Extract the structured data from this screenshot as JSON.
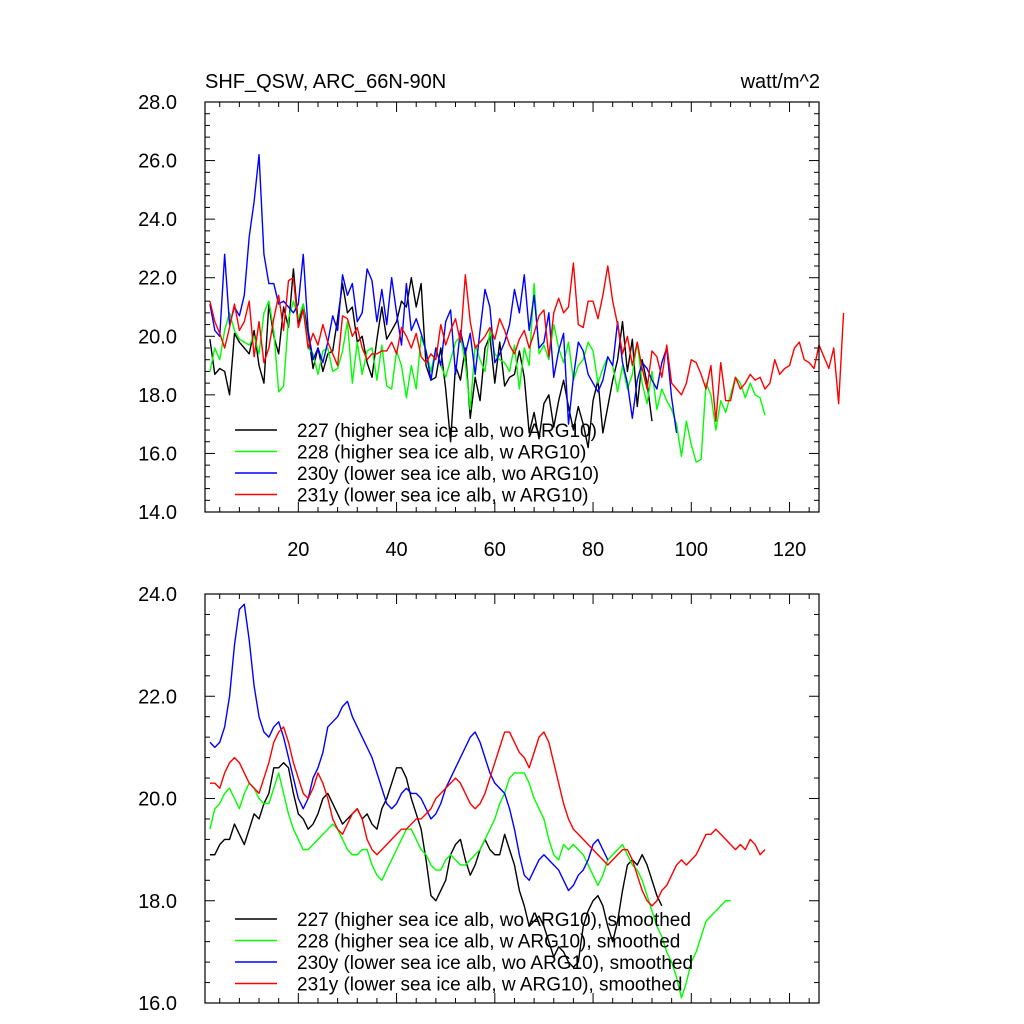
{
  "chart_data": [
    {
      "type": "line",
      "title": "SHF_QSW, ARC_66N-90N",
      "units": "watt/m^2",
      "xlim": [
        1,
        126
      ],
      "ylim": [
        14,
        28
      ],
      "x_ticks": [
        20,
        40,
        60,
        80,
        100,
        120
      ],
      "x_tick_labels": [
        "20",
        "40",
        "60",
        "80",
        "100",
        "120"
      ],
      "y_ticks": [
        14,
        16,
        18,
        20,
        22,
        24,
        26,
        28
      ],
      "y_tick_labels": [
        "14.0",
        "16.0",
        "18.0",
        "20.0",
        "22.0",
        "24.0",
        "26.0",
        "28.0"
      ],
      "grid": false,
      "legend_position": "bottom-left",
      "series": [
        {
          "name": "227 (higher sea ice alb, wo ARG10)",
          "color": "#000000",
          "x_start": 2,
          "values": [
            19.9,
            18.7,
            18.9,
            18.8,
            18.0,
            20.1,
            19.8,
            19.6,
            19.4,
            20.2,
            19.0,
            18.4,
            21.1,
            20.0,
            19.4,
            21.0,
            20.3,
            22.3,
            20.4,
            21.1,
            20.1,
            18.9,
            19.6,
            18.8,
            19.4,
            19.5,
            20.6,
            21.8,
            20.8,
            21.0,
            19.8,
            20.0,
            19.1,
            18.6,
            19.9,
            21.0,
            19.9,
            20.2,
            20.5,
            21.2,
            21.0,
            22.0,
            21.0,
            21.8,
            19.0,
            18.5,
            18.6,
            19.6,
            18.2,
            16.4,
            19.0,
            18.5,
            19.6,
            17.2,
            18.6,
            17.8,
            19.6,
            20.0,
            18.4,
            19.8,
            18.3,
            18.6,
            18.7,
            19.5,
            18.6,
            16.7,
            17.4,
            16.5,
            17.7,
            18.0,
            16.9,
            17.8,
            18.5,
            17.6,
            16.8,
            17.6,
            17.0,
            16.2,
            17.8,
            18.5,
            16.7,
            17.6,
            18.5,
            19.2,
            20.5,
            18.8,
            19.9,
            17.6,
            19.2,
            18.4,
            17.1
          ]
        },
        {
          "name": "228 (higher sea ice alb, w ARG10)",
          "color": "#00ff00",
          "x_start": 2,
          "values": [
            18.8,
            19.6,
            19.2,
            20.2,
            20.8,
            20.2,
            19.9,
            19.8,
            19.7,
            20.0,
            19.4,
            20.8,
            21.2,
            20.2,
            18.1,
            18.3,
            20.6,
            21.2,
            20.6,
            21.1,
            19.6,
            19.4,
            18.7,
            19.5,
            19.6,
            18.8,
            18.9,
            19.5,
            20.5,
            18.4,
            19.8,
            18.7,
            19.5,
            19.6,
            18.5,
            19.7,
            18.3,
            18.2,
            19.5,
            19.0,
            17.9,
            19.0,
            18.2,
            20.0,
            19.5,
            18.8,
            19.6,
            19.0,
            18.6,
            19.2,
            19.8,
            20.0,
            19.1,
            17.5,
            19.7,
            19.2,
            18.8,
            20.2,
            19.4,
            19.2,
            19.1,
            18.8,
            19.7,
            18.2,
            19.6,
            19.0,
            21.8,
            19.4,
            19.7,
            19.2,
            20.4,
            19.6,
            19.1,
            19.8,
            18.5,
            19.0,
            19.2,
            19.8,
            19.5,
            18.4,
            18.9,
            19.3,
            19.0,
            18.1,
            19.0,
            18.2,
            18.7,
            19.8,
            18.4,
            17.7,
            18.8,
            17.5,
            18.2,
            17.8,
            17.5,
            17.0,
            15.9,
            17.1,
            16.3,
            15.7,
            15.8,
            18.4,
            18.0,
            16.8,
            17.8,
            17.4,
            18.0,
            18.6,
            18.4,
            17.9,
            18.4,
            18.0,
            17.9,
            17.3
          ]
        },
        {
          "name": "230y (lower sea ice alb, wo ARG10)",
          "color": "#0000ff",
          "x_start": 2,
          "values": [
            21.1,
            20.2,
            20.0,
            22.8,
            20.4,
            21.0,
            20.7,
            21.4,
            23.4,
            24.6,
            26.2,
            22.8,
            21.8,
            21.8,
            21.1,
            21.2,
            21.0,
            20.8,
            21.1,
            22.8,
            20.2,
            19.2,
            19.6,
            19.1,
            19.8,
            20.7,
            20.2,
            22.1,
            21.4,
            21.8,
            20.5,
            20.8,
            22.3,
            21.9,
            20.5,
            21.6,
            20.4,
            22.0,
            20.8,
            19.7,
            21.8,
            20.2,
            20.6,
            20.1,
            19.5,
            18.5,
            19.6,
            19.0,
            20.5,
            20.9,
            18.7,
            20.2,
            19.4,
            20.1,
            18.7,
            20.2,
            21.6,
            21.0,
            19.1,
            19.4,
            19.8,
            20.4,
            21.6,
            20.8,
            22.1,
            20.2,
            21.4,
            19.6,
            19.8,
            20.8,
            18.6,
            19.5,
            20.1,
            17.0,
            18.6,
            19.8,
            19.5,
            18.7,
            18.4,
            18.1,
            18.5,
            19.3,
            19.0,
            20.5,
            19.1,
            18.4,
            17.2,
            18.5,
            19.1,
            18.9,
            18.5,
            18.2,
            19.1,
            19.6,
            17.9,
            16.7
          ]
        },
        {
          "name": "231y (lower sea ice alb, w ARG10)",
          "color": "#ff0000",
          "x_start": 2,
          "values": [
            21.2,
            20.5,
            20.1,
            19.6,
            20.3,
            21.1,
            20.2,
            20.5,
            21.2,
            19.3,
            20.5,
            19.1,
            19.6,
            20.6,
            21.4,
            20.2,
            21.9,
            22.0,
            20.3,
            20.9,
            19.6,
            20.1,
            19.7,
            20.4,
            19.8,
            19.4,
            19.0,
            20.7,
            20.6,
            20.0,
            20.3,
            19.6,
            19.2,
            19.4,
            19.4,
            19.5,
            19.5,
            19.8,
            19.4,
            20.3,
            20.0,
            19.6,
            20.1,
            19.3,
            19.1,
            19.4,
            19.2,
            20.4,
            19.7,
            20.2,
            20.6,
            19.8,
            22.1,
            20.5,
            19.6,
            19.8,
            20.0,
            20.3,
            19.9,
            20.6,
            20.2,
            19.7,
            19.4,
            19.9,
            20.2,
            19.6,
            20.1,
            20.7,
            20.9,
            19.3,
            20.8,
            21.3,
            20.8,
            21.0,
            22.5,
            20.4,
            20.3,
            21.2,
            21.2,
            20.6,
            21.4,
            22.4,
            21.2,
            20.4,
            19.4,
            20.0,
            19.0,
            19.8,
            18.9,
            18.2,
            19.5,
            19.3,
            18.6,
            19.7,
            18.4,
            18.2,
            18.0,
            18.4,
            19.2,
            19.1,
            18.7,
            18.2,
            19.0,
            17.1,
            19.1,
            17.8,
            17.8,
            18.6,
            18.2,
            18.4,
            18.7,
            18.5,
            18.6,
            18.2,
            18.4,
            19.2,
            18.7,
            18.9,
            19.0,
            19.6,
            19.8,
            19.2,
            19.1,
            18.9,
            19.7,
            19.3,
            18.9,
            19.6,
            17.7,
            20.8
          ]
        }
      ]
    },
    {
      "type": "line",
      "xlim": [
        1,
        126
      ],
      "ylim": [
        16,
        24
      ],
      "x_ticks": [
        20,
        40,
        60,
        80,
        100,
        120
      ],
      "y_ticks": [
        16,
        18,
        20,
        22,
        24
      ],
      "y_tick_labels": [
        "16.0",
        "18.0",
        "20.0",
        "22.0",
        "24.0"
      ],
      "grid": false,
      "legend_position": "bottom-left",
      "series": [
        {
          "name": "227 (higher sea ice alb, wo ARG10), smoothed",
          "color": "#000000",
          "x_start": 2,
          "values": [
            18.9,
            18.9,
            19.1,
            19.2,
            19.2,
            19.5,
            19.3,
            19.1,
            19.4,
            19.7,
            19.6,
            19.9,
            20.1,
            20.6,
            20.6,
            20.7,
            20.6,
            20.1,
            19.7,
            19.6,
            19.4,
            19.5,
            19.7,
            20.0,
            20.1,
            19.9,
            19.7,
            19.5,
            19.6,
            19.7,
            19.8,
            19.6,
            19.7,
            19.5,
            19.4,
            19.8,
            20.0,
            20.3,
            20.6,
            20.6,
            20.4,
            20.0,
            19.7,
            19.4,
            18.8,
            18.1,
            18.0,
            18.2,
            18.4,
            18.9,
            19.1,
            19.2,
            18.8,
            18.5,
            18.7,
            19.0,
            19.2,
            19.0,
            18.9,
            18.9,
            19.3,
            19.0,
            18.7,
            18.2,
            17.9,
            17.5,
            17.6,
            17.7,
            17.5,
            17.2,
            16.9,
            17.1,
            17.0,
            16.8,
            16.7,
            16.8,
            17.5,
            17.8,
            18.0,
            18.1,
            17.9,
            17.5,
            17.2,
            17.6,
            18.2,
            18.7,
            18.8,
            18.7,
            18.9,
            18.7,
            18.4,
            18.1,
            17.9
          ]
        },
        {
          "name": "228 (higher sea ice alb, w ARG10), smoothed",
          "color": "#00ff00",
          "x_start": 2,
          "values": [
            19.4,
            19.8,
            19.9,
            20.1,
            20.2,
            20.0,
            19.8,
            20.1,
            20.3,
            20.2,
            20.0,
            19.9,
            19.9,
            20.2,
            20.5,
            20.1,
            19.7,
            19.4,
            19.2,
            19.0,
            19.0,
            19.1,
            19.2,
            19.3,
            19.4,
            19.5,
            19.4,
            19.2,
            19.0,
            18.9,
            18.9,
            19.0,
            19.0,
            18.7,
            18.5,
            18.4,
            18.6,
            18.8,
            19.0,
            19.2,
            19.4,
            19.4,
            19.2,
            19.0,
            18.9,
            18.7,
            18.6,
            18.6,
            18.8,
            18.9,
            18.8,
            18.7,
            18.7,
            18.8,
            18.9,
            19.0,
            19.2,
            19.4,
            19.6,
            19.9,
            20.1,
            20.4,
            20.5,
            20.5,
            20.5,
            20.3,
            20.0,
            19.8,
            19.6,
            19.2,
            18.9,
            18.8,
            19.1,
            19.0,
            19.1,
            19.0,
            18.9,
            18.7,
            18.5,
            18.3,
            18.5,
            18.8,
            18.9,
            19.0,
            19.1,
            18.9,
            18.7,
            18.6,
            18.4,
            18.1,
            17.8,
            17.5,
            17.3,
            17.0,
            16.8,
            16.5,
            16.1,
            16.4,
            16.8,
            17.0,
            17.3,
            17.6,
            17.7,
            17.8,
            17.9,
            18.0,
            18.0
          ]
        },
        {
          "name": "230y (lower sea ice alb, wo ARG10), smoothed",
          "color": "#0000ff",
          "x_start": 2,
          "values": [
            21.1,
            21.0,
            21.1,
            21.4,
            22.0,
            23.0,
            23.7,
            23.8,
            23.1,
            22.2,
            21.6,
            21.3,
            21.2,
            21.4,
            21.5,
            21.2,
            20.8,
            20.4,
            20.0,
            19.8,
            20.0,
            20.4,
            20.6,
            20.9,
            21.4,
            21.5,
            21.6,
            21.8,
            21.9,
            21.6,
            21.4,
            21.2,
            21.0,
            20.8,
            20.5,
            20.2,
            19.9,
            19.8,
            19.9,
            20.1,
            20.2,
            20.1,
            20.1,
            20.0,
            19.8,
            19.6,
            19.7,
            19.9,
            20.2,
            20.4,
            20.6,
            20.8,
            21.0,
            21.2,
            21.3,
            21.1,
            20.8,
            20.5,
            20.3,
            20.2,
            20.1,
            19.8,
            19.4,
            18.9,
            18.5,
            18.4,
            18.6,
            18.8,
            18.9,
            18.8,
            18.7,
            18.6,
            18.4,
            18.2,
            18.3,
            18.5,
            18.6,
            18.8,
            19.1,
            19.2,
            19.0,
            18.8
          ]
        },
        {
          "name": "231y (lower sea ice alb, w ARG10), smoothed",
          "color": "#ff0000",
          "x_start": 2,
          "values": [
            20.3,
            20.3,
            20.2,
            20.5,
            20.7,
            20.8,
            20.7,
            20.5,
            20.3,
            20.2,
            20.1,
            20.4,
            20.7,
            21.1,
            21.3,
            21.4,
            21.1,
            20.7,
            20.4,
            20.1,
            20.0,
            20.2,
            20.5,
            20.3,
            20.0,
            19.6,
            19.4,
            19.3,
            19.5,
            19.7,
            19.8,
            19.6,
            19.2,
            19.0,
            18.9,
            19.0,
            19.1,
            19.2,
            19.3,
            19.4,
            19.4,
            19.5,
            19.6,
            19.6,
            19.7,
            19.8,
            20.0,
            20.1,
            20.2,
            20.3,
            20.4,
            20.3,
            20.1,
            19.9,
            19.8,
            19.9,
            20.1,
            20.4,
            20.7,
            21.0,
            21.3,
            21.3,
            21.1,
            20.9,
            20.8,
            20.6,
            20.9,
            21.2,
            21.3,
            21.1,
            20.7,
            20.3,
            19.9,
            19.6,
            19.4,
            19.3,
            19.2,
            19.1,
            19.0,
            18.9,
            18.8,
            18.7,
            18.8,
            18.9,
            19.0,
            19.0,
            18.8,
            18.5,
            18.2,
            18.0,
            17.9,
            18.0,
            18.2,
            18.3,
            18.5,
            18.7,
            18.8,
            18.7,
            18.8,
            18.9,
            19.1,
            19.3,
            19.3,
            19.4,
            19.3,
            19.2,
            19.1,
            19.0,
            19.1,
            19.0,
            19.2,
            19.1,
            18.9,
            19.0
          ]
        }
      ]
    }
  ]
}
